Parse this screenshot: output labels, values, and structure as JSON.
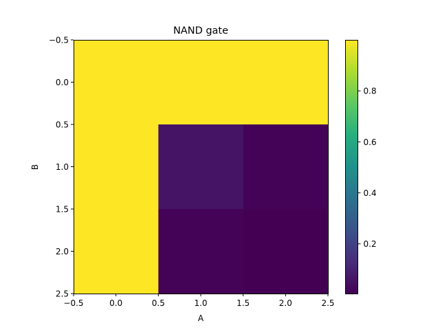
{
  "chart_data": {
    "type": "heatmap",
    "title": "NAND gate",
    "xlabel": "A",
    "ylabel": "B",
    "x_range": [
      -0.5,
      2.5
    ],
    "y_range": [
      -0.5,
      2.5
    ],
    "y_inverted": true,
    "x_ticks": [
      "−0.5",
      "0.0",
      "0.5",
      "1.0",
      "1.5",
      "2.0",
      "2.5"
    ],
    "x_tick_values": [
      -0.5,
      0.0,
      0.5,
      1.0,
      1.5,
      2.0,
      2.5
    ],
    "y_ticks": [
      "−0.5",
      "0.0",
      "0.5",
      "1.0",
      "1.5",
      "2.0",
      "2.5"
    ],
    "y_tick_values": [
      -0.5,
      0.0,
      0.5,
      1.0,
      1.5,
      2.0,
      2.5
    ],
    "grid": false,
    "values": [
      [
        1.0,
        1.0,
        1.0
      ],
      [
        1.0,
        0.06,
        0.01
      ],
      [
        1.0,
        0.01,
        0.005
      ]
    ],
    "vmin": 0.005,
    "vmax": 1.0,
    "colormap": "viridis",
    "colorbar": {
      "placement": "right",
      "ticks": [
        "0.2",
        "0.4",
        "0.6",
        "0.8"
      ],
      "tick_values": [
        0.2,
        0.4,
        0.6,
        0.8
      ]
    }
  }
}
